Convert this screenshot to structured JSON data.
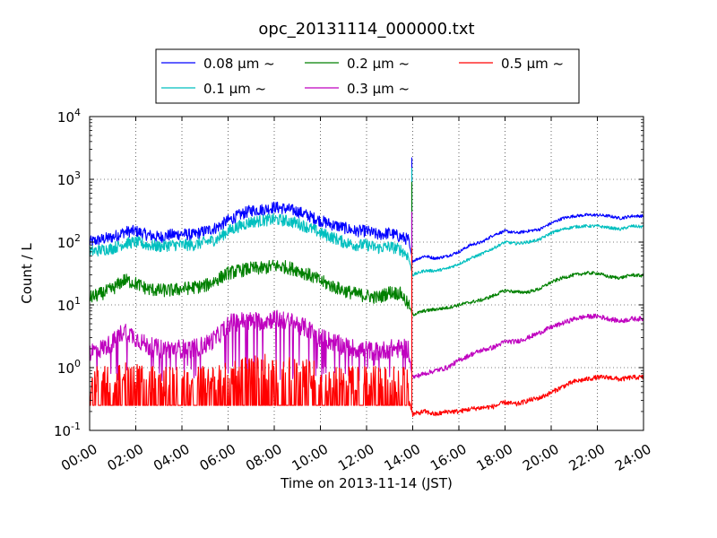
{
  "chart_data": {
    "type": "line",
    "title": "opc_20131114_000000.txt",
    "xlabel": "Time on 2013-11-14 (JST)",
    "ylabel": "Count / L",
    "xlim": [
      0,
      24
    ],
    "ylim": [
      0.1,
      10000
    ],
    "yscale": "log",
    "grid": true,
    "legend_position": "top-center",
    "x_ticks": [
      "00:00",
      "02:00",
      "04:00",
      "06:00",
      "08:00",
      "10:00",
      "12:00",
      "14:00",
      "16:00",
      "18:00",
      "20:00",
      "22:00",
      "24:00"
    ],
    "y_ticks": [
      {
        "base": "10",
        "exp": "-1",
        "value": 0.1
      },
      {
        "base": "10",
        "exp": "0",
        "value": 1
      },
      {
        "base": "10",
        "exp": "1",
        "value": 10
      },
      {
        "base": "10",
        "exp": "2",
        "value": 100
      },
      {
        "base": "10",
        "exp": "3",
        "value": 1000
      },
      {
        "base": "10",
        "exp": "4",
        "value": 10000
      }
    ],
    "series": [
      {
        "name": "0.08 μm ~",
        "color": "#0000ff",
        "x": [
          0,
          0.5,
          1,
          1.5,
          2,
          2.5,
          3,
          3.5,
          4,
          4.5,
          5,
          5.5,
          6,
          6.5,
          7,
          7.5,
          8,
          8.5,
          9,
          9.5,
          10,
          10.5,
          11,
          11.5,
          12,
          12.5,
          13,
          13.5,
          13.8,
          14,
          14.5,
          15,
          15.5,
          16,
          16.5,
          17,
          17.5,
          18,
          18.5,
          19,
          19.5,
          20,
          20.5,
          21,
          21.5,
          22,
          22.5,
          23,
          23.5,
          24
        ],
        "y": [
          100,
          110,
          120,
          145,
          150,
          130,
          120,
          130,
          135,
          130,
          150,
          170,
          220,
          270,
          320,
          330,
          360,
          340,
          310,
          260,
          220,
          190,
          170,
          150,
          150,
          130,
          140,
          120,
          110,
          50,
          60,
          55,
          60,
          70,
          90,
          100,
          130,
          150,
          140,
          150,
          160,
          200,
          240,
          260,
          270,
          270,
          260,
          240,
          260,
          260
        ],
        "noise": 0.22
      },
      {
        "name": "0.1 μm ~",
        "color": "#00bfbf",
        "x": [
          0,
          0.5,
          1,
          1.5,
          2,
          2.5,
          3,
          3.5,
          4,
          4.5,
          5,
          5.5,
          6,
          6.5,
          7,
          7.5,
          8,
          8.5,
          9,
          9.5,
          10,
          10.5,
          11,
          11.5,
          12,
          12.5,
          13,
          13.5,
          13.8,
          14,
          14.5,
          15,
          15.5,
          16,
          16.5,
          17,
          17.5,
          18,
          18.5,
          19,
          19.5,
          20,
          20.5,
          21,
          21.5,
          22,
          22.5,
          23,
          23.5,
          24
        ],
        "y": [
          70,
          75,
          80,
          95,
          100,
          90,
          85,
          90,
          90,
          90,
          100,
          110,
          150,
          180,
          210,
          220,
          230,
          220,
          200,
          170,
          140,
          120,
          100,
          90,
          90,
          80,
          85,
          75,
          60,
          30,
          35,
          35,
          38,
          45,
          55,
          65,
          80,
          100,
          95,
          100,
          110,
          140,
          160,
          175,
          180,
          180,
          170,
          160,
          180,
          175
        ],
        "noise": 0.22
      },
      {
        "name": "0.2 μm ~",
        "color": "#008000",
        "x": [
          0,
          0.5,
          1,
          1.5,
          2,
          2.5,
          3,
          3.5,
          4,
          4.5,
          5,
          5.5,
          6,
          6.5,
          7,
          7.5,
          8,
          8.5,
          9,
          9.5,
          10,
          10.5,
          11,
          11.5,
          12,
          12.5,
          13,
          13.5,
          13.8,
          14,
          14.5,
          15,
          15.5,
          16,
          16.5,
          17,
          17.5,
          18,
          18.5,
          19,
          19.5,
          20,
          20.5,
          21,
          21.5,
          22,
          22.5,
          23,
          23.5,
          24
        ],
        "y": [
          13,
          15,
          18,
          25,
          22,
          18,
          17,
          17,
          18,
          19,
          20,
          25,
          32,
          35,
          38,
          38,
          42,
          40,
          36,
          30,
          24,
          20,
          17,
          15,
          14,
          13,
          16,
          15,
          10,
          7,
          8,
          8.5,
          9,
          10,
          11,
          12,
          14,
          17,
          16,
          16,
          18,
          23,
          27,
          30,
          32,
          32,
          28,
          27,
          30,
          29
        ],
        "noise": 0.25
      },
      {
        "name": "0.3 μm ~",
        "color": "#bf00bf",
        "x": [
          0,
          0.5,
          1,
          1.5,
          2,
          2.5,
          3,
          3.5,
          4,
          4.5,
          5,
          5.5,
          6,
          6.5,
          7,
          7.5,
          8,
          8.5,
          9,
          9.5,
          10,
          10.5,
          11,
          11.5,
          12,
          12.5,
          13,
          13.5,
          13.8,
          14,
          14.5,
          15,
          15.5,
          16,
          16.5,
          17,
          17.5,
          18,
          18.5,
          19,
          19.5,
          20,
          20.5,
          21,
          21.5,
          22,
          22.5,
          23,
          23.5,
          24
        ],
        "y": [
          1.8,
          2,
          2.5,
          4,
          3,
          2.2,
          2,
          2,
          2,
          2,
          2.3,
          3,
          5,
          5.5,
          5.5,
          5.5,
          6,
          5.5,
          5,
          4,
          3,
          2.6,
          2.2,
          2,
          1.9,
          1.8,
          2,
          2,
          2,
          0.7,
          0.8,
          0.9,
          1,
          1.3,
          1.6,
          1.9,
          2.1,
          2.6,
          2.6,
          3,
          3.6,
          4.4,
          5.1,
          6,
          6.5,
          6.6,
          6,
          5.5,
          6,
          6
        ],
        "noise": 0.35
      },
      {
        "name": "0.5 μm ~",
        "color": "#ff0000",
        "x": [
          0,
          0.5,
          1,
          1.5,
          2,
          2.5,
          3,
          3.5,
          4,
          4.5,
          5,
          5.5,
          6,
          6.5,
          7,
          7.5,
          8,
          8.5,
          9,
          9.5,
          10,
          10.5,
          11,
          11.5,
          12,
          12.5,
          13,
          13.5,
          13.8,
          14,
          14.5,
          15,
          15.5,
          16,
          16.5,
          17,
          17.5,
          18,
          18.5,
          19,
          19.5,
          20,
          20.5,
          21,
          21.5,
          22,
          22.5,
          23,
          23.5,
          24
        ],
        "y": [
          0.35,
          0.35,
          0.35,
          0.4,
          0.4,
          0.35,
          0.35,
          0.35,
          0.35,
          0.35,
          0.35,
          0.35,
          0.45,
          0.5,
          0.5,
          0.55,
          0.55,
          0.55,
          0.5,
          0.45,
          0.4,
          0.38,
          0.35,
          0.35,
          0.35,
          0.35,
          0.35,
          0.35,
          0.35,
          0.18,
          0.2,
          0.18,
          0.2,
          0.2,
          0.22,
          0.23,
          0.24,
          0.28,
          0.26,
          0.3,
          0.33,
          0.4,
          0.5,
          0.6,
          0.65,
          0.7,
          0.7,
          0.65,
          0.7,
          0.7
        ],
        "noise": 0.35
      }
    ]
  }
}
